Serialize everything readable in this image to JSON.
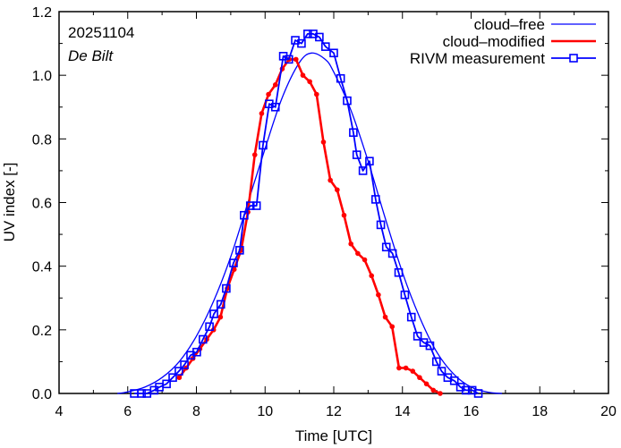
{
  "chart_data": {
    "type": "line",
    "title": "",
    "xlabel": "Time  [UTC]",
    "ylabel": "UV index  [-]",
    "xlim": [
      4,
      20
    ],
    "ylim": [
      0,
      1.2
    ],
    "xticks": [
      4,
      6,
      8,
      10,
      12,
      14,
      16,
      18,
      20
    ],
    "xtick_labels": [
      "4",
      "6",
      "8",
      "10",
      "12",
      "14",
      "16",
      "18",
      "20"
    ],
    "yticks": [
      0,
      0.2,
      0.4,
      0.6,
      0.8,
      1.0,
      1.2
    ],
    "ytick_labels": [
      "0.0",
      "0.2",
      "0.4",
      "0.6",
      "0.8",
      "1.0",
      "1.2"
    ],
    "grid": false,
    "legend_position": "top-right",
    "annotations": [
      "20251104",
      "De Bilt"
    ],
    "series": [
      {
        "name": "cloud–free",
        "color": "#0000ff",
        "style": "thin-line",
        "x": [
          5.7,
          6.0,
          6.5,
          7.0,
          7.5,
          8.0,
          8.5,
          9.0,
          9.5,
          10.0,
          10.5,
          11.0,
          11.35,
          11.75,
          12.0,
          12.5,
          13.0,
          13.5,
          14.0,
          14.5,
          15.0,
          15.5,
          16.0,
          16.5,
          16.9
        ],
        "y": [
          0.0,
          0.005,
          0.02,
          0.05,
          0.1,
          0.18,
          0.29,
          0.43,
          0.6,
          0.77,
          0.93,
          1.04,
          1.07,
          1.05,
          1.01,
          0.89,
          0.73,
          0.55,
          0.38,
          0.24,
          0.13,
          0.06,
          0.02,
          0.004,
          0.0
        ]
      },
      {
        "name": "cloud–modified",
        "color": "#ff0000",
        "style": "thick-line-dots",
        "x": [
          7.5,
          7.7,
          7.9,
          8.1,
          8.3,
          8.5,
          8.7,
          8.9,
          9.1,
          9.3,
          9.5,
          9.7,
          9.9,
          10.1,
          10.3,
          10.5,
          10.7,
          10.9,
          11.1,
          11.3,
          11.5,
          11.7,
          11.9,
          12.1,
          12.3,
          12.5,
          12.7,
          12.9,
          13.1,
          13.3,
          13.5,
          13.7,
          13.9,
          14.1,
          14.3,
          14.5,
          14.7,
          14.9,
          15.1
        ],
        "y": [
          0.05,
          0.08,
          0.11,
          0.14,
          0.17,
          0.2,
          0.24,
          0.33,
          0.39,
          0.45,
          0.57,
          0.75,
          0.88,
          0.94,
          0.97,
          1.02,
          1.05,
          1.05,
          1.0,
          0.98,
          0.94,
          0.79,
          0.67,
          0.64,
          0.56,
          0.47,
          0.44,
          0.42,
          0.37,
          0.31,
          0.24,
          0.21,
          0.08,
          0.08,
          0.07,
          0.05,
          0.03,
          0.01,
          0.0
        ]
      },
      {
        "name": "RIVM measurement",
        "color": "#0000ff",
        "style": "line-squares",
        "x": [
          6.19,
          6.4,
          6.56,
          6.77,
          6.92,
          7.13,
          7.31,
          7.49,
          7.65,
          7.83,
          8.01,
          8.19,
          8.38,
          8.51,
          8.71,
          8.87,
          9.08,
          9.26,
          9.39,
          9.57,
          9.75,
          9.94,
          10.12,
          10.3,
          10.53,
          10.69,
          10.88,
          11.06,
          11.24,
          11.4,
          11.58,
          11.76,
          12.0,
          12.2,
          12.39,
          12.57,
          12.67,
          12.85,
          13.04,
          13.22,
          13.37,
          13.53,
          13.71,
          13.89,
          14.07,
          14.26,
          14.44,
          14.62,
          14.8,
          14.99,
          15.14,
          15.32,
          15.51,
          15.69,
          15.85,
          16.03,
          16.21
        ],
        "y": [
          0.0,
          0.0,
          0.0,
          0.01,
          0.02,
          0.03,
          0.05,
          0.07,
          0.09,
          0.12,
          0.13,
          0.17,
          0.21,
          0.25,
          0.28,
          0.33,
          0.41,
          0.45,
          0.56,
          0.59,
          0.59,
          0.78,
          0.91,
          0.9,
          1.06,
          1.05,
          1.11,
          1.1,
          1.13,
          1.13,
          1.12,
          1.09,
          1.07,
          0.99,
          0.92,
          0.82,
          0.75,
          0.7,
          0.73,
          0.61,
          0.53,
          0.46,
          0.44,
          0.38,
          0.31,
          0.24,
          0.18,
          0.16,
          0.15,
          0.1,
          0.07,
          0.05,
          0.04,
          0.02,
          0.01,
          0.01,
          0.0
        ]
      }
    ]
  }
}
